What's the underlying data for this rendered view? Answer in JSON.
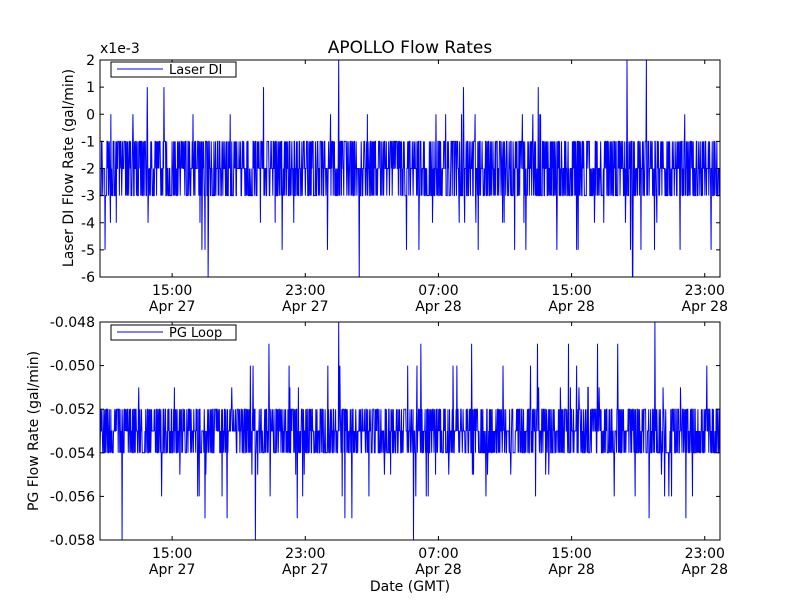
{
  "figure": {
    "title": "APOLLO Flow Rates",
    "xlabel": "Date (GMT)",
    "line_color": "#0000ff"
  },
  "chart_data": [
    {
      "type": "line",
      "title": "APOLLO Flow Rates",
      "ylabel": "Laser DI Flow Rate (gal/min)",
      "offset_label": "x1e-3",
      "ylim": [
        -6,
        2
      ],
      "yticks": [
        -6,
        -5,
        -4,
        -3,
        -2,
        -1,
        0,
        1,
        2
      ],
      "ytick_labels": [
        "-6",
        "-5",
        "-4",
        "-3",
        "-2",
        "-1",
        "0",
        "1",
        "2"
      ],
      "xlim": [
        "2013-04-27 10:40",
        "2013-04-28 23:55"
      ],
      "xticks": [
        "2013-04-27 15:00",
        "2013-04-27 23:00",
        "2013-04-28 07:00",
        "2013-04-28 15:00",
        "2013-04-28 23:00"
      ],
      "xtick_labels": [
        [
          "15:00",
          "Apr 27"
        ],
        [
          "23:00",
          "Apr 27"
        ],
        [
          "07:00",
          "Apr 28"
        ],
        [
          "15:00",
          "Apr 28"
        ],
        [
          "23:00",
          "Apr 28"
        ]
      ],
      "legend_loc": "upper left",
      "series": [
        {
          "name": "Laser DI",
          "color": "#0000ff",
          "base": [
            -3,
            -2,
            -1
          ],
          "spikes": [
            {
              "x": "2013-04-27 13:30",
              "y": 1
            },
            {
              "x": "2013-04-27 14:30",
              "y": 1
            },
            {
              "x": "2013-04-27 17:10",
              "y": -6
            },
            {
              "x": "2013-04-27 20:30",
              "y": 1
            },
            {
              "x": "2013-04-28 01:00",
              "y": 2
            },
            {
              "x": "2013-04-28 02:15",
              "y": -6
            },
            {
              "x": "2013-04-28 08:30",
              "y": 1
            },
            {
              "x": "2013-04-28 13:00",
              "y": 1
            },
            {
              "x": "2013-04-28 18:20",
              "y": 2
            },
            {
              "x": "2013-04-28 18:40",
              "y": -6
            },
            {
              "x": "2013-04-28 19:30",
              "y": 2
            }
          ],
          "noise_range": [
            -5,
            0
          ],
          "resolution": 1
        }
      ]
    },
    {
      "type": "line",
      "ylabel": "PG Flow Rate (gal/min)",
      "ylim": [
        -0.058,
        -0.048
      ],
      "yticks": [
        -0.058,
        -0.056,
        -0.054,
        -0.052,
        -0.05,
        -0.048
      ],
      "ytick_labels": [
        "-0.058",
        "-0.056",
        "-0.054",
        "-0.052",
        "-0.050",
        "-0.048"
      ],
      "xlim": [
        "2013-04-27 10:40",
        "2013-04-28 23:55"
      ],
      "xticks": [
        "2013-04-27 15:00",
        "2013-04-27 23:00",
        "2013-04-28 07:00",
        "2013-04-28 15:00",
        "2013-04-28 23:00"
      ],
      "xtick_labels": [
        [
          "15:00",
          "Apr 27"
        ],
        [
          "23:00",
          "Apr 27"
        ],
        [
          "07:00",
          "Apr 28"
        ],
        [
          "15:00",
          "Apr 28"
        ],
        [
          "23:00",
          "Apr 28"
        ]
      ],
      "xlabel": "Date (GMT)",
      "legend_loc": "upper left",
      "series": [
        {
          "name": "PG Loop",
          "color": "#0000ff",
          "base": [
            -0.054,
            -0.053,
            -0.052
          ],
          "spikes": [
            {
              "x": "2013-04-27 12:00",
              "y": -0.058
            },
            {
              "x": "2013-04-27 20:00",
              "y": -0.058
            },
            {
              "x": "2013-04-28 01:00",
              "y": -0.048
            },
            {
              "x": "2013-04-28 05:30",
              "y": -0.058
            },
            {
              "x": "2013-04-28 09:00",
              "y": -0.049
            },
            {
              "x": "2013-04-28 20:00",
              "y": -0.048
            }
          ],
          "noise_range": [
            -0.057,
            -0.049
          ],
          "resolution": 0.001
        }
      ]
    }
  ]
}
